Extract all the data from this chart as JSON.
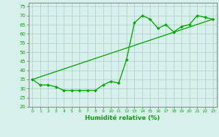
{
  "line1_x": [
    0,
    1,
    2,
    3,
    4,
    5,
    6,
    7,
    8,
    9,
    10,
    11,
    12,
    13,
    14,
    15,
    16,
    17,
    18,
    19,
    20,
    21,
    22,
    23
  ],
  "line1_y": [
    35,
    32,
    32,
    31,
    29,
    29,
    29,
    29,
    29,
    32,
    34,
    33,
    46,
    66,
    70,
    68,
    63,
    65,
    61,
    64,
    65,
    70,
    69,
    68
  ],
  "trend_x": [
    0,
    23
  ],
  "trend_y": [
    35,
    68
  ],
  "xlabel": "Humidité relative (%)",
  "ylim": [
    20,
    77
  ],
  "xlim": [
    -0.5,
    23.5
  ],
  "yticks": [
    20,
    25,
    30,
    35,
    40,
    45,
    50,
    55,
    60,
    65,
    70,
    75
  ],
  "xticks": [
    0,
    1,
    2,
    3,
    4,
    5,
    6,
    7,
    8,
    9,
    10,
    11,
    12,
    13,
    14,
    15,
    16,
    17,
    18,
    19,
    20,
    21,
    22,
    23
  ],
  "bg_color": "#d8f0ec",
  "grid_color": "#a8ccc8",
  "line_color": "#00aa00",
  "tick_color": "#00aa00",
  "label_color": "#00aa00",
  "spine_color": "#888888"
}
